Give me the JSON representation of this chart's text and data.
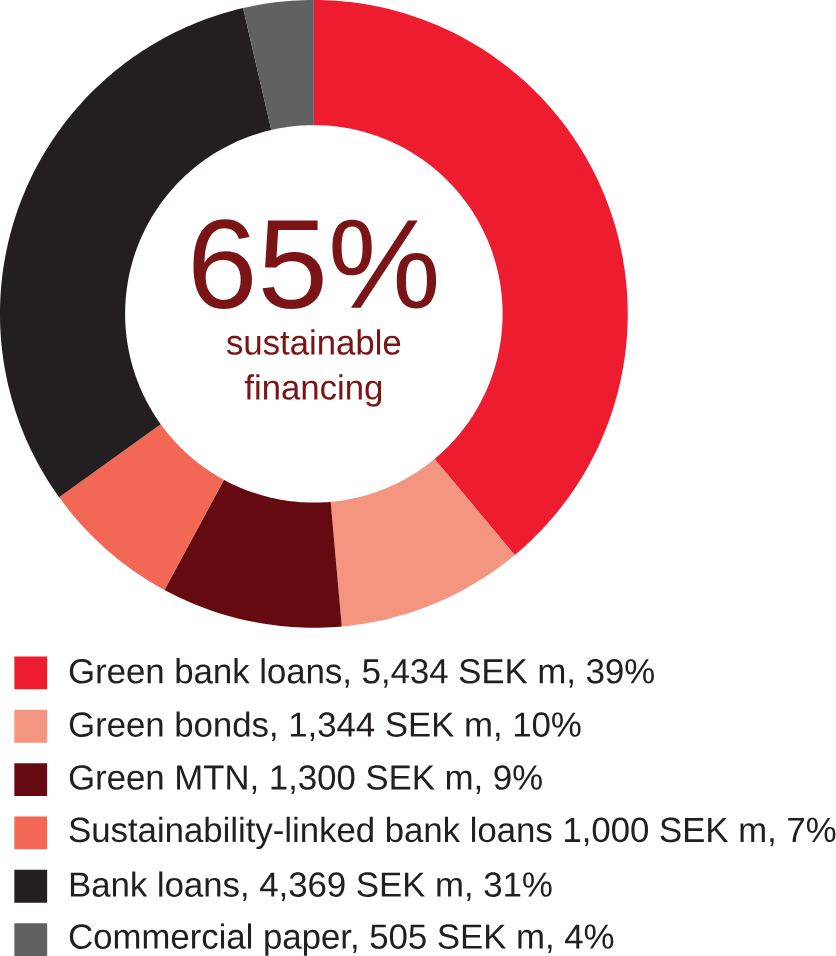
{
  "chart_data": {
    "type": "donut",
    "categories": [
      "Green bank loans, 5,434 SEK m, 39%",
      "Green bonds, 1,344 SEK m, 10%",
      "Green MTN, 1,300 SEK m, 9%",
      "Sustainability-linked bank loans 1,000 SEK m, 7%",
      "Bank loans, 4,369 SEK m, 31%",
      "Commercial paper, 505 SEK m, 4%"
    ],
    "values": [
      5434,
      1344,
      1300,
      1000,
      4369,
      505
    ],
    "colors": [
      "#ed1c2e",
      "#f4957f",
      "#650a10",
      "#f26855",
      "#231f20",
      "#616163"
    ],
    "annotations": [
      "65%",
      "sustainable financing"
    ],
    "legend": "bottom"
  }
}
